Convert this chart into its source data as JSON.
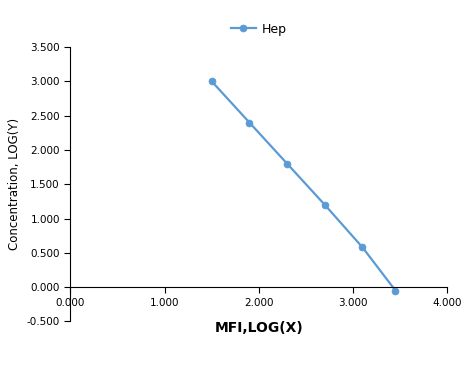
{
  "x": [
    1.5,
    1.9,
    2.3,
    2.7,
    3.1,
    3.45
  ],
  "y": [
    3.0,
    2.4,
    1.8,
    1.2,
    0.58,
    -0.05
  ],
  "line_color": "#5B9BD5",
  "marker": "o",
  "marker_color": "#5B9BD5",
  "marker_size": 5,
  "line_width": 1.6,
  "legend_label": "Hep",
  "xlabel": "MFI,LOG(X)",
  "ylabel": "Concentration, LOG(Y)",
  "xlim": [
    0.0,
    4.0
  ],
  "ylim": [
    -0.5,
    3.5
  ],
  "xticks": [
    0.0,
    1.0,
    2.0,
    3.0,
    4.0
  ],
  "yticks": [
    -0.5,
    0.0,
    0.5,
    1.0,
    1.5,
    2.0,
    2.5,
    3.0,
    3.5
  ],
  "xlabel_fontsize": 10,
  "ylabel_fontsize": 8.5,
  "tick_fontsize": 7.5,
  "legend_fontsize": 9,
  "background_color": "#ffffff",
  "spine_color": "#333333"
}
